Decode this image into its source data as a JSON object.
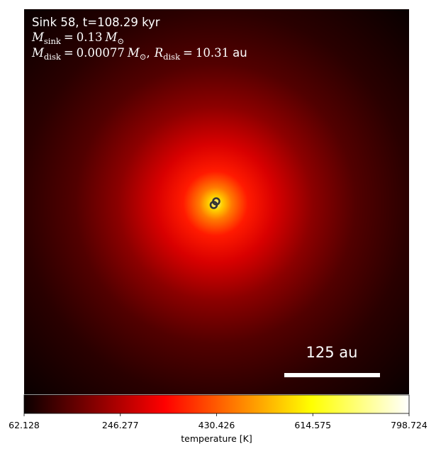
{
  "panel": {
    "title_line": "Sink 58, t=108.29 kyr",
    "sink_mass": {
      "symbol": "M",
      "subscript": "sink",
      "equals": "=",
      "value": "0.13",
      "unit_symbol": "M",
      "unit_subscript": "⊙"
    },
    "disk": {
      "mass_symbol": "M",
      "mass_subscript": "disk",
      "equals": "=",
      "mass_value": "0.00077",
      "mass_unit_symbol": "M",
      "mass_unit_subscript": "⊙",
      "separator": ",",
      "radius_symbol": "R",
      "radius_subscript": "disk",
      "radius_equals": "=",
      "radius_value": "10.31",
      "radius_unit": "au"
    },
    "scale_bar_label": "125 au"
  },
  "colorbar": {
    "label": "temperature [K]",
    "ticks": [
      "62.128",
      "246.277",
      "430.426",
      "614.575",
      "798.724"
    ],
    "colormap": "hot",
    "colors": [
      "#0b0000",
      "#ff0000",
      "#ffff00",
      "#ffffff"
    ]
  },
  "markers": {
    "sink_marker_icon": "ring-marker",
    "color": "#333333"
  }
}
